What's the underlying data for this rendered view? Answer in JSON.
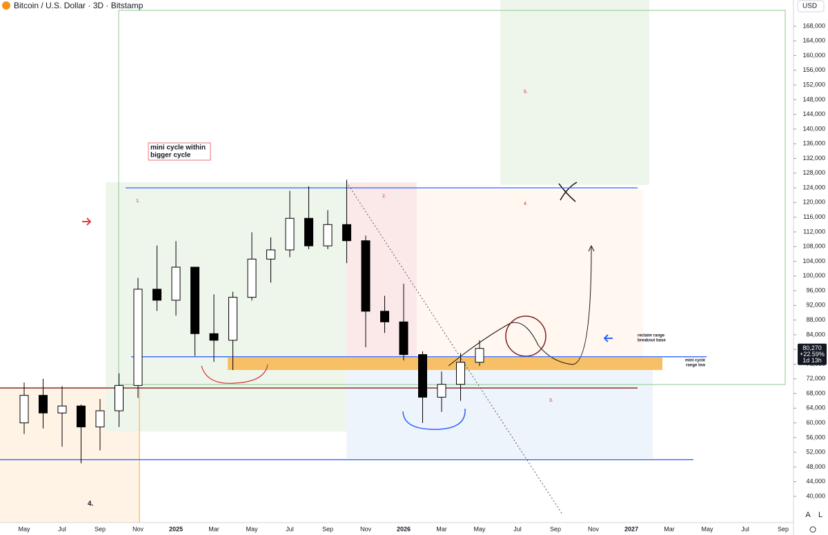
{
  "chart_data": {
    "type": "candlestick",
    "title": "Bitcoin / U.S. Dollar · 3D · Bitstamp",
    "currency": "USD",
    "categories": [
      "May",
      null,
      "Jul",
      null,
      "Sep",
      null,
      "Nov",
      null,
      "2025",
      null,
      "Mar",
      null,
      "May",
      null,
      "Jul",
      null,
      "Sep",
      null,
      "Nov",
      null,
      "2026",
      null,
      "Mar",
      null,
      "May",
      null,
      "Jul",
      null,
      "Sep",
      null,
      "Nov",
      null,
      "2027",
      null,
      "Mar",
      null,
      "May",
      null,
      "Jul",
      null,
      "Sep"
    ],
    "open": [
      60000,
      67500,
      62700,
      64600,
      58900,
      63300,
      70200,
      96400,
      93400,
      102400,
      84300,
      82500,
      94200,
      104600,
      107100,
      115700,
      108200,
      114000,
      109600,
      90400,
      87500,
      78600,
      67000,
      70500,
      76500,
      null,
      null,
      null,
      null,
      null,
      null,
      null,
      null,
      null,
      null,
      null,
      null,
      null,
      null,
      null,
      null
    ],
    "high": [
      71000,
      72000,
      70000,
      65000,
      66500,
      73500,
      99500,
      108300,
      109500,
      102500,
      95000,
      95700,
      111900,
      110500,
      123200,
      124400,
      117900,
      126200,
      111000,
      94600,
      97900,
      79500,
      74000,
      79000,
      82500,
      null,
      null,
      null,
      null,
      null,
      null,
      null,
      null,
      null,
      null,
      null,
      null,
      null,
      null,
      null,
      null
    ],
    "low": [
      57000,
      58500,
      53500,
      49000,
      52500,
      58900,
      66800,
      90500,
      89200,
      78200,
      76600,
      74400,
      93300,
      98200,
      105100,
      107300,
      107300,
      103500,
      80600,
      84500,
      77000,
      60000,
      63000,
      66000,
      75500,
      null,
      null,
      null,
      null,
      null,
      null,
      null,
      null,
      null,
      null,
      null,
      null,
      null,
      null,
      null,
      null
    ],
    "close": [
      67500,
      62700,
      64600,
      58900,
      63300,
      70200,
      96400,
      93400,
      102400,
      84300,
      82500,
      94200,
      104600,
      107100,
      115700,
      108200,
      114000,
      109600,
      90400,
      87500,
      78600,
      67000,
      70500,
      76500,
      80270,
      null,
      null,
      null,
      null,
      null,
      null,
      null,
      null,
      null,
      null,
      null,
      null,
      null,
      null,
      null,
      null
    ],
    "up_color": "#ffffff",
    "down_color": "#000000",
    "ylim": [
      32860,
      175140
    ],
    "yticks": [
      {
        "value": 40000,
        "label": "40,000"
      },
      {
        "value": 44000,
        "label": "44,000"
      },
      {
        "value": 48000,
        "label": "48,000"
      },
      {
        "value": 52000,
        "label": "52,000"
      },
      {
        "value": 56000,
        "label": "56,000"
      },
      {
        "value": 60000,
        "label": "60,000"
      },
      {
        "value": 64000,
        "label": "64,000"
      },
      {
        "value": 68000,
        "label": "68,000"
      },
      {
        "value": 72000,
        "label": "72,000"
      },
      {
        "value": 76000,
        "label": "76,000"
      },
      {
        "value": 80000,
        "label": "80,000"
      },
      {
        "value": 84000,
        "label": "84,000"
      },
      {
        "value": 88000,
        "label": "88,000"
      },
      {
        "value": 92000,
        "label": "92,000"
      },
      {
        "value": 96000,
        "label": "96,000"
      },
      {
        "value": 100000,
        "label": "100,000"
      },
      {
        "value": 104000,
        "label": "104,000"
      },
      {
        "value": 108000,
        "label": "108,000"
      },
      {
        "value": 112000,
        "label": "112,000"
      },
      {
        "value": 116000,
        "label": "116,000"
      },
      {
        "value": 120000,
        "label": "120,000"
      },
      {
        "value": 124000,
        "label": "124,000"
      },
      {
        "value": 128000,
        "label": "128,000"
      },
      {
        "value": 132000,
        "label": "132,000"
      },
      {
        "value": 136000,
        "label": "136,000"
      },
      {
        "value": 140000,
        "label": "140,000"
      },
      {
        "value": 144000,
        "label": "144,000"
      },
      {
        "value": 148000,
        "label": "148,000"
      },
      {
        "value": 152000,
        "label": "152,000"
      },
      {
        "value": 156000,
        "label": "156,000"
      },
      {
        "value": 160000,
        "label": "160,000"
      },
      {
        "value": 164000,
        "label": "164,000"
      },
      {
        "value": 168000,
        "label": "168,000"
      }
    ],
    "levels": [
      {
        "value": 124000,
        "color": "#2962ff"
      },
      {
        "value": 78000,
        "color": "#2962ff"
      },
      {
        "value": 69500,
        "color": "#7f1d1d"
      },
      {
        "value": 50000,
        "color": "#2962ff"
      }
    ],
    "last_price": {
      "value": 80270,
      "label": "80,270"
    },
    "change": "+22.59%",
    "countdown": "1d 13h",
    "note_box": [
      "mini cycle within",
      "bigger cycle"
    ],
    "zone_labels": [
      "1.",
      "2.",
      "3.",
      "4.",
      "5.",
      "4."
    ],
    "reclaim_note": [
      "reclaim range",
      "breakout base"
    ],
    "range_note": [
      "mini cycle",
      "range low"
    ],
    "buttons": [
      "A",
      "L"
    ]
  }
}
